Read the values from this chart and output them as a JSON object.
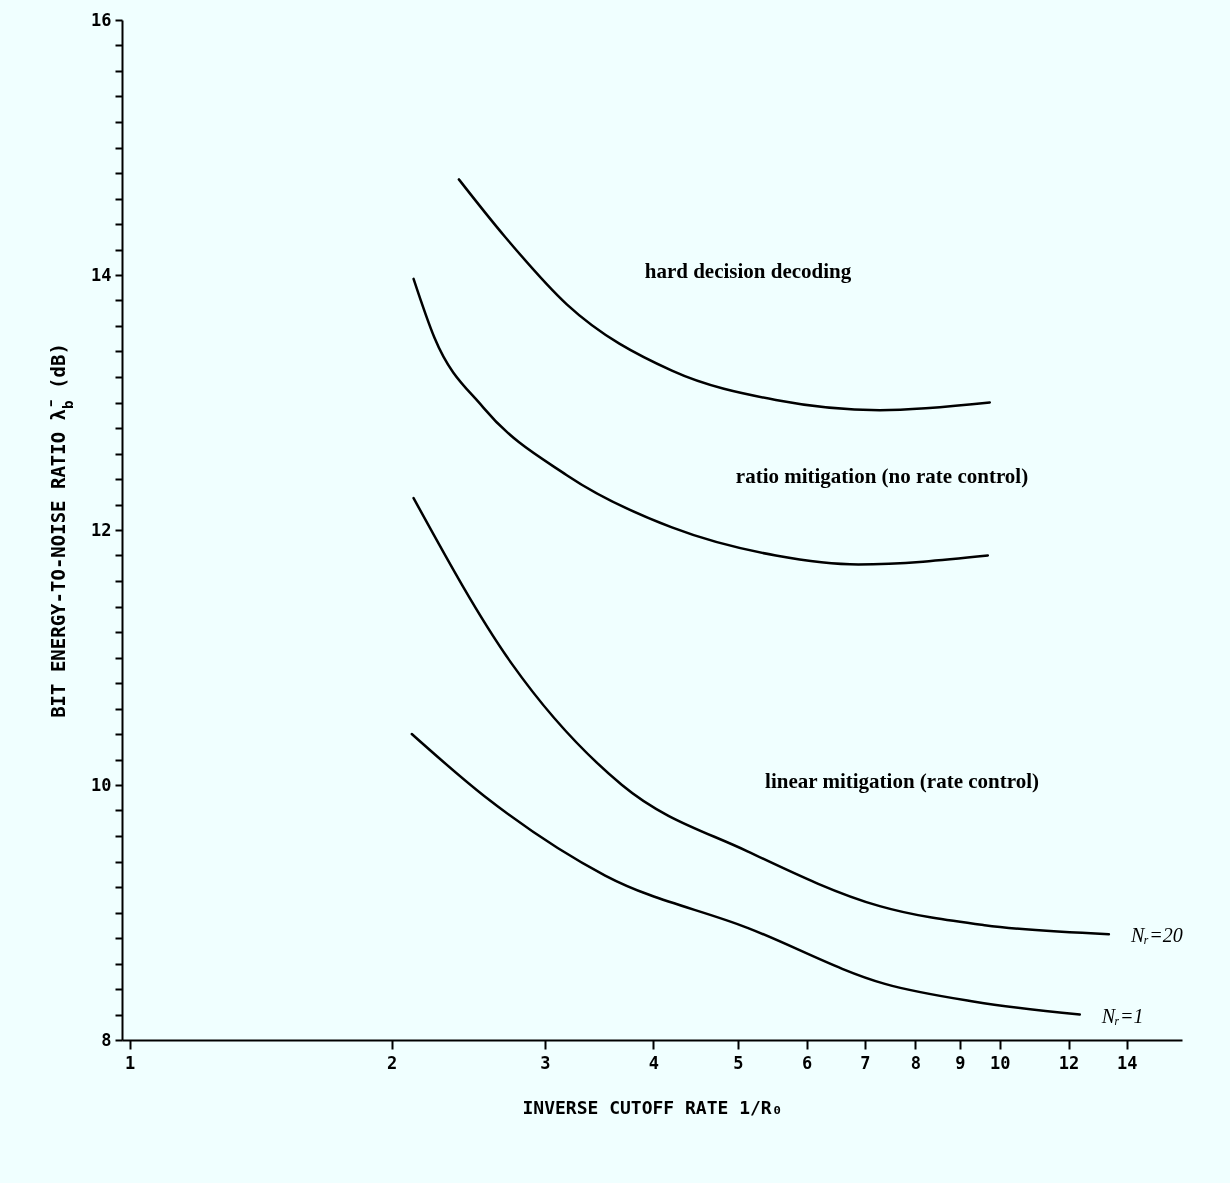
{
  "chart_data": {
    "type": "line",
    "xlabel": "INVERSE CUTOFF RATE 1/R₀",
    "ylabel": "BIT ENERGY-TO-NOISE RATIO λ̄$_{b}$ (dB)",
    "log": "x",
    "grid": false,
    "marker": "none",
    "line_style": "solid",
    "xlim": [
      0.98,
      16.2
    ],
    "xticks": [
      1,
      2,
      3,
      4,
      5,
      6,
      7,
      8,
      9,
      10,
      12,
      14
    ],
    "ylim": [
      8,
      16
    ],
    "yticks": [
      8,
      {
        "value": 8.2,
        "label": null
      },
      {
        "value": 8.4,
        "label": null
      },
      {
        "value": 8.6,
        "label": null
      },
      {
        "value": 8.8,
        "label": null
      },
      {
        "value": 9,
        "label": null
      },
      {
        "value": 9.2,
        "label": null
      },
      {
        "value": 9.4,
        "label": null
      },
      {
        "value": 9.6,
        "label": null
      },
      {
        "value": 9.8,
        "label": null
      },
      10,
      {
        "value": 10.2,
        "label": null
      },
      {
        "value": 10.4,
        "label": null
      },
      {
        "value": 10.6,
        "label": null
      },
      {
        "value": 10.8,
        "label": null
      },
      {
        "value": 11,
        "label": null
      },
      {
        "value": 11.2,
        "label": null
      },
      {
        "value": 11.4,
        "label": null
      },
      {
        "value": 11.6,
        "label": null
      },
      {
        "value": 11.8,
        "label": null
      },
      12,
      {
        "value": 12.2,
        "label": null
      },
      {
        "value": 12.4,
        "label": null
      },
      {
        "value": 12.6,
        "label": null
      },
      {
        "value": 12.8,
        "label": null
      },
      {
        "value": 13,
        "label": null
      },
      {
        "value": 13.2,
        "label": null
      },
      {
        "value": 13.4,
        "label": null
      },
      {
        "value": 13.6,
        "label": null
      },
      {
        "value": 13.8,
        "label": null
      },
      14,
      {
        "value": 14.2,
        "label": null
      },
      {
        "value": 14.4,
        "label": null
      },
      {
        "value": 14.6,
        "label": null
      },
      {
        "value": 14.8,
        "label": null
      },
      {
        "value": 15,
        "label": null
      },
      {
        "value": 15.2,
        "label": null
      },
      {
        "value": 15.4,
        "label": null
      },
      {
        "value": 15.6,
        "label": null
      },
      {
        "value": 15.8,
        "label": null
      },
      16
    ],
    "series": [
      {
        "color": "#000000",
        "x": [
          2.39,
          2.7,
          3.18,
          4.2,
          5.53,
          7.28,
          9.74
        ],
        "values": [
          14.75,
          14.3,
          13.77,
          13.25,
          13.02,
          12.94,
          13.0
        ]
      },
      {
        "color": "#000000",
        "x": [
          2.12,
          2.24,
          2.55,
          3.18,
          4.2,
          5.53,
          6.88,
          9.69
        ],
        "values": [
          13.97,
          13.51,
          12.96,
          12.43,
          12.02,
          11.8,
          11.73,
          11.8
        ]
      },
      {
        "name": "Nᵣ=20",
        "color": "#000000",
        "x": [
          2.12,
          2.75,
          3.68,
          5.13,
          7.28,
          9.61,
          13.35
        ],
        "values": [
          12.25,
          10.95,
          10.0,
          9.48,
          9.05,
          8.9,
          8.83
        ]
      },
      {
        "name": "Nᵣ=1",
        "color": "#000000",
        "x": [
          2.11,
          2.56,
          3.52,
          5.13,
          7.38,
          9.36,
          12.36
        ],
        "values": [
          10.4,
          9.91,
          9.29,
          8.88,
          8.44,
          8.3,
          8.2
        ]
      }
    ],
    "annotations": [
      "hard decision decoding",
      "ratio mitigation (no rate control)",
      "linear mitigation (rate control)"
    ]
  }
}
